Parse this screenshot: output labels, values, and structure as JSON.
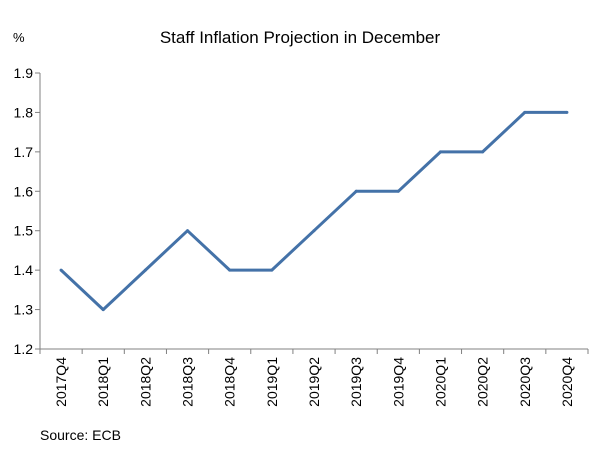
{
  "chart_data": {
    "type": "line",
    "title": "Staff Inflation Projection in December",
    "ylabel": "%",
    "source": "Source: ECB",
    "categories": [
      "2017Q4",
      "2018Q1",
      "2018Q2",
      "2018Q3",
      "2018Q4",
      "2019Q1",
      "2019Q2",
      "2019Q3",
      "2019Q4",
      "2020Q1",
      "2020Q2",
      "2020Q3",
      "2020Q4"
    ],
    "series": [
      {
        "values": [
          1.4,
          1.3,
          1.4,
          1.5,
          1.4,
          1.4,
          1.5,
          1.6,
          1.6,
          1.7,
          1.7,
          1.8,
          1.8
        ],
        "color": "#4472a8"
      }
    ],
    "ylim": [
      1.2,
      1.9
    ],
    "yticks": [
      "1.2",
      "1.3",
      "1.4",
      "1.5",
      "1.6",
      "1.7",
      "1.8",
      "1.9"
    ],
    "grid": false,
    "legend": "none"
  }
}
